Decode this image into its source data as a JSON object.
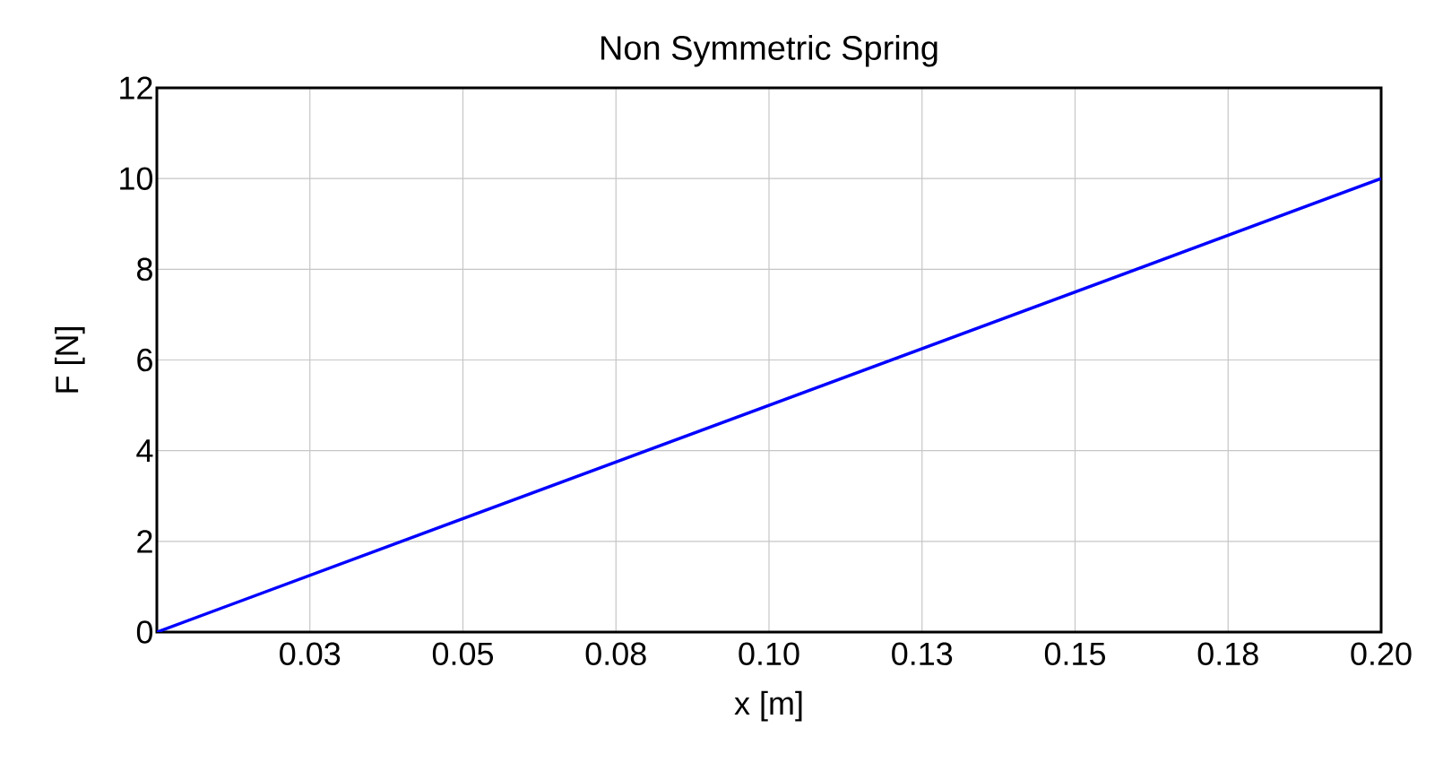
{
  "chart_data": {
    "type": "line",
    "title": "Non Symmetric Spring",
    "xlabel": "x [m]",
    "ylabel": "F [N]",
    "x": [
      0,
      0.2
    ],
    "series": [
      {
        "color": "#0000ff",
        "values": [
          0,
          10
        ]
      }
    ],
    "xlim": [
      0,
      0.2
    ],
    "xticks": [
      {
        "value": 0.025,
        "label": "0.03"
      },
      {
        "value": 0.05,
        "label": "0.05"
      },
      {
        "value": 0.075,
        "label": "0.08"
      },
      {
        "value": 0.1,
        "label": "0.10"
      },
      {
        "value": 0.125,
        "label": "0.13"
      },
      {
        "value": 0.15,
        "label": "0.15"
      },
      {
        "value": 0.175,
        "label": "0.18"
      },
      {
        "value": 0.2,
        "label": "0.20"
      }
    ],
    "ylim": [
      0,
      12
    ],
    "yticks": [
      0,
      2,
      4,
      6,
      8,
      10,
      12
    ],
    "grid": true,
    "marker": "none",
    "line_style": "solid"
  }
}
